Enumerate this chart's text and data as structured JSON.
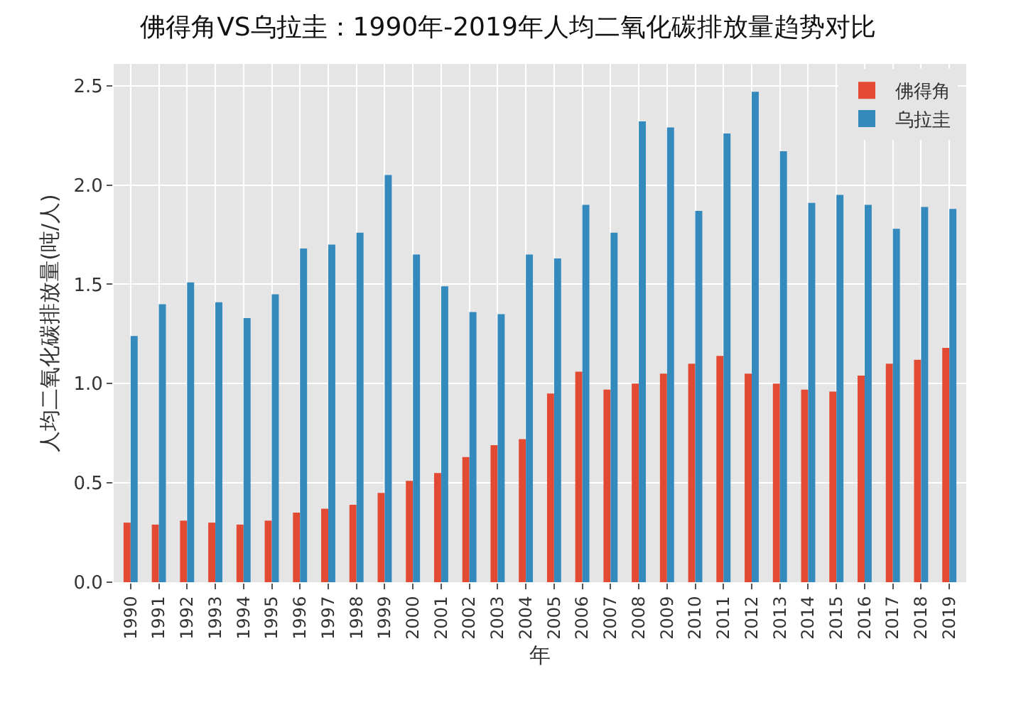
{
  "chart_data": {
    "type": "bar",
    "title": "佛得角VS乌拉圭：1990年-2019年人均二氧化碳排放量趋势对比",
    "xlabel": "年",
    "ylabel": "人均二氧化碳排放量(吨/人)",
    "categories": [
      "1990",
      "1991",
      "1992",
      "1993",
      "1994",
      "1995",
      "1996",
      "1997",
      "1998",
      "1999",
      "2000",
      "2001",
      "2002",
      "2003",
      "2004",
      "2005",
      "2006",
      "2007",
      "2008",
      "2009",
      "2010",
      "2011",
      "2012",
      "2013",
      "2014",
      "2015",
      "2016",
      "2017",
      "2018",
      "2019"
    ],
    "series": [
      {
        "name": "佛得角",
        "color": "#e24a33",
        "values": [
          0.3,
          0.29,
          0.31,
          0.3,
          0.29,
          0.31,
          0.35,
          0.37,
          0.39,
          0.45,
          0.51,
          0.55,
          0.63,
          0.69,
          0.72,
          0.95,
          1.06,
          0.97,
          1.0,
          1.05,
          1.1,
          1.14,
          1.05,
          1.0,
          0.97,
          0.96,
          1.04,
          1.1,
          1.12,
          1.18
        ]
      },
      {
        "name": "乌拉圭",
        "color": "#348abd",
        "values": [
          1.24,
          1.4,
          1.51,
          1.41,
          1.33,
          1.45,
          1.68,
          1.7,
          1.76,
          2.05,
          1.65,
          1.49,
          1.36,
          1.35,
          1.65,
          1.63,
          1.9,
          1.76,
          2.32,
          2.29,
          1.87,
          2.26,
          2.47,
          2.17,
          1.91,
          1.95,
          1.9,
          1.78,
          1.89,
          1.88
        ]
      }
    ],
    "ylim": [
      0,
      2.61
    ],
    "yticks": [
      {
        "value": 0,
        "label": "0.0"
      },
      {
        "value": 0.5,
        "label": "0.5"
      },
      {
        "value": 1,
        "label": "1.0"
      },
      {
        "value": 1.5,
        "label": "1.5"
      },
      {
        "value": 2,
        "label": "2.0"
      },
      {
        "value": 2.5,
        "label": "2.5"
      }
    ],
    "grid": true,
    "legend": "top right"
  }
}
